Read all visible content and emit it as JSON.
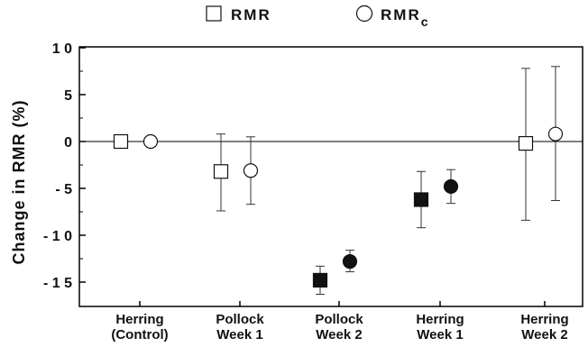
{
  "chart_data": {
    "type": "scatter",
    "categories": [
      "Herring\n(Control)",
      "Pollock\nWeek 1",
      "Pollock\nWeek 2",
      "Herring\nWeek 1",
      "Herring\nWeek 2"
    ],
    "ylabel": "Change in RMR (%)",
    "ylim": [
      -17,
      10
    ],
    "yticks": [
      10,
      5,
      0,
      -5,
      -10,
      -15
    ],
    "ytick_labels": [
      "1 0",
      "5",
      "0",
      "- 5",
      "- 1 0",
      "- 1 5"
    ],
    "grid": false,
    "zero_line": true,
    "legend_position": "top-center",
    "series": [
      {
        "name": "RMR",
        "marker": "square",
        "values": [
          0,
          -3.2,
          -14.8,
          -6.2,
          -0.2
        ],
        "error_low": [
          0,
          -7.4,
          -16.3,
          -9.2,
          -8.4
        ],
        "error_high": [
          0,
          0.8,
          -13.3,
          -3.2,
          7.8
        ],
        "filled": [
          false,
          false,
          true,
          true,
          false
        ]
      },
      {
        "name": "RMR",
        "name_subscript": "c",
        "marker": "circle",
        "values": [
          0,
          -3.1,
          -12.8,
          -4.8,
          0.8
        ],
        "error_low": [
          0,
          -6.7,
          -13.9,
          -6.6,
          -6.3
        ],
        "error_high": [
          0,
          0.5,
          -11.6,
          -3.0,
          8.0
        ],
        "filled": [
          false,
          false,
          true,
          true,
          false
        ]
      }
    ]
  }
}
